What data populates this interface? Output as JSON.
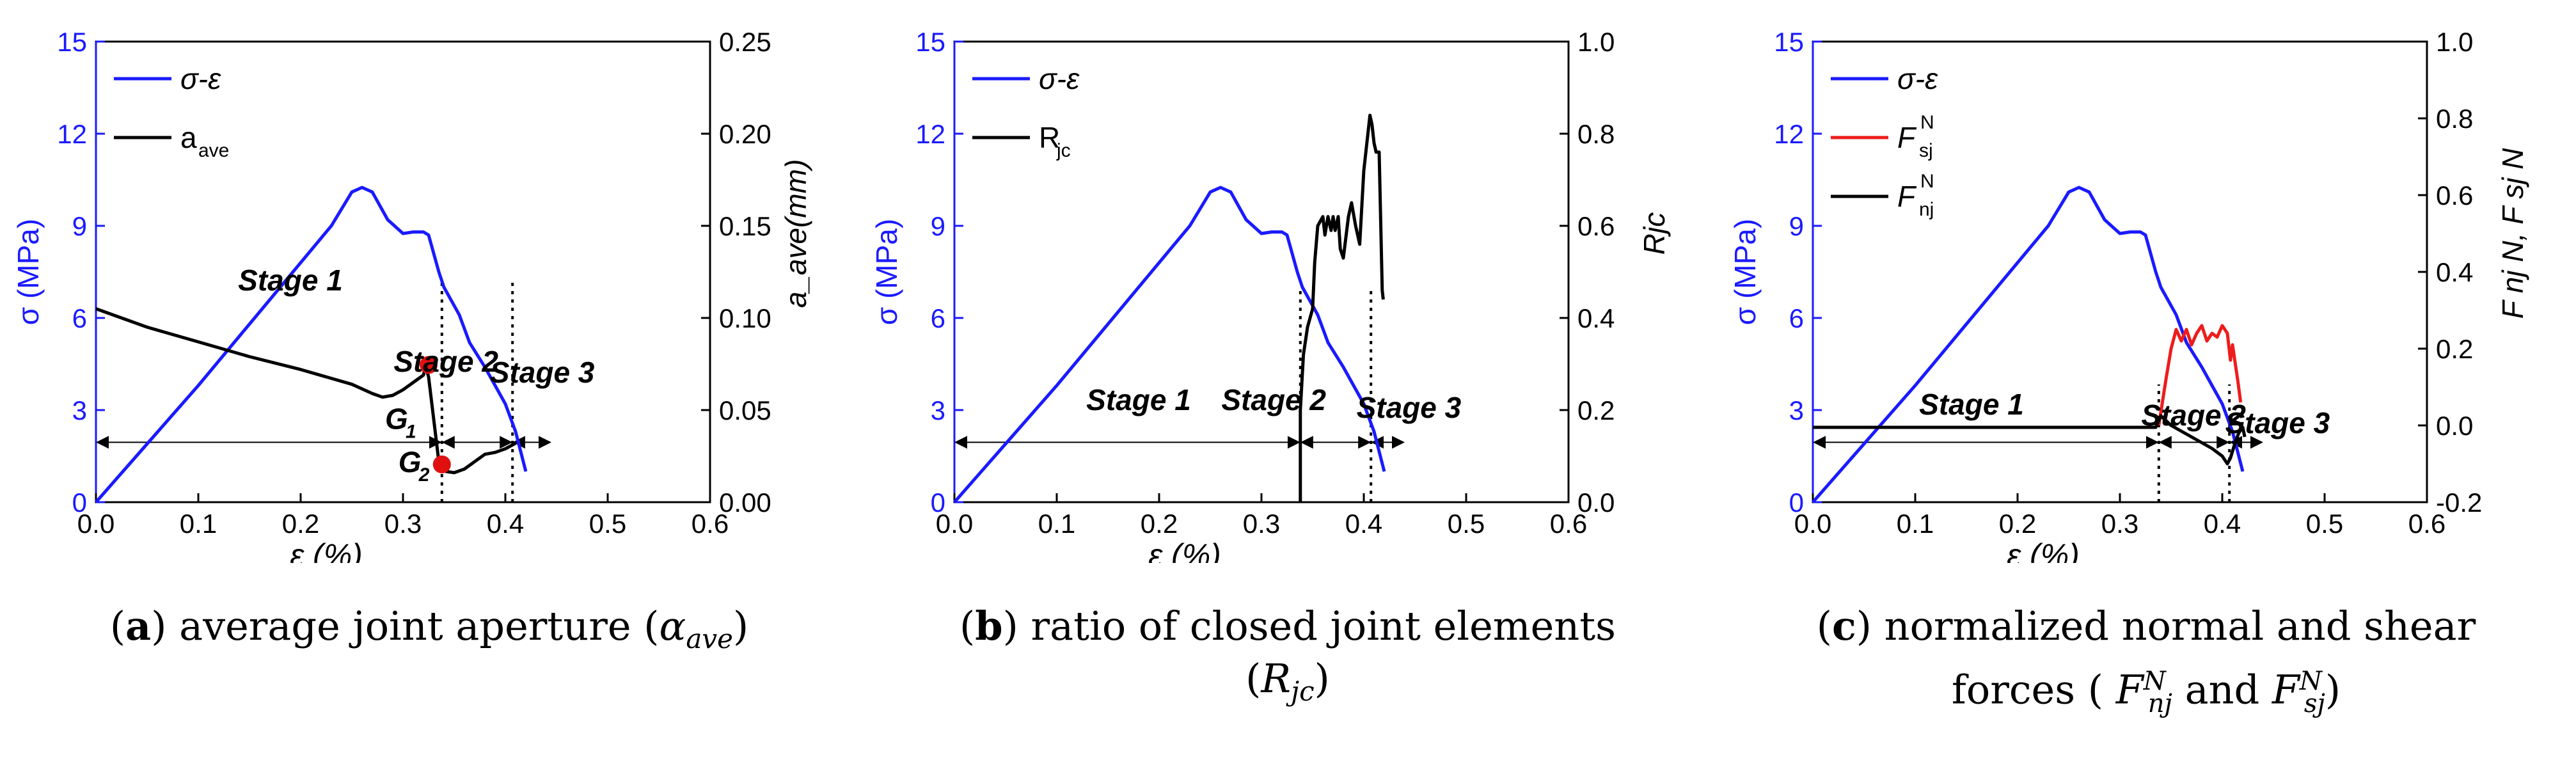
{
  "colors": {
    "stress": "#1a1aff",
    "black": "#000000",
    "red": "#ee1c1c",
    "marker": "#e01010"
  },
  "chart_data": [
    {
      "id": "a",
      "type": "line",
      "xlabel": "ε  (%)",
      "ylabel": "σ (MPa)",
      "y2label": "a_ave(mm)",
      "xlim": [
        0,
        0.6
      ],
      "ylim": [
        0,
        15
      ],
      "y2lim": [
        0,
        0.25
      ],
      "xticks": [
        "0.0",
        "0.1",
        "0.2",
        "0.3",
        "0.4",
        "0.5",
        "0.6"
      ],
      "yticks": [
        "0",
        "3",
        "6",
        "9",
        "12",
        "15"
      ],
      "y2ticks": [
        "0.00",
        "0.05",
        "0.10",
        "0.15",
        "0.20",
        "0.25"
      ],
      "legend": [
        {
          "label": "σ-ε",
          "color": "#1a1aff"
        },
        {
          "label": "a",
          "sub": "ave",
          "color": "#000000"
        }
      ],
      "series": [
        {
          "name": "σ-ε",
          "axis": "y",
          "color": "#1a1aff",
          "points": [
            [
              0,
              0
            ],
            [
              0.05,
              1.9
            ],
            [
              0.1,
              3.8
            ],
            [
              0.15,
              5.8
            ],
            [
              0.2,
              7.8
            ],
            [
              0.23,
              9.0
            ],
            [
              0.25,
              10.1
            ],
            [
              0.26,
              10.25
            ],
            [
              0.27,
              10.1
            ],
            [
              0.285,
              9.2
            ],
            [
              0.3,
              8.75
            ],
            [
              0.31,
              8.8
            ],
            [
              0.32,
              8.8
            ],
            [
              0.325,
              8.7
            ],
            [
              0.335,
              7.5
            ],
            [
              0.34,
              7.0
            ],
            [
              0.355,
              6.1
            ],
            [
              0.365,
              5.2
            ],
            [
              0.38,
              4.4
            ],
            [
              0.39,
              3.8
            ],
            [
              0.4,
              3.2
            ],
            [
              0.41,
              2.3
            ],
            [
              0.42,
              1.0
            ]
          ]
        },
        {
          "name": "a",
          "axis": "y2",
          "color": "#000000",
          "points": [
            [
              0,
              0.105
            ],
            [
              0.05,
              0.095
            ],
            [
              0.1,
              0.087
            ],
            [
              0.15,
              0.079
            ],
            [
              0.2,
              0.072
            ],
            [
              0.25,
              0.064
            ],
            [
              0.27,
              0.059
            ],
            [
              0.28,
              0.057
            ],
            [
              0.29,
              0.058
            ],
            [
              0.3,
              0.061
            ],
            [
              0.31,
              0.065
            ],
            [
              0.32,
              0.069
            ],
            [
              0.322,
              0.074
            ],
            [
              0.325,
              0.068
            ],
            [
              0.33,
              0.045
            ],
            [
              0.335,
              0.022
            ],
            [
              0.338,
              0.017
            ],
            [
              0.35,
              0.016
            ],
            [
              0.36,
              0.018
            ],
            [
              0.37,
              0.022
            ],
            [
              0.38,
              0.026
            ],
            [
              0.39,
              0.027
            ],
            [
              0.4,
              0.029
            ],
            [
              0.41,
              0.032
            ]
          ]
        }
      ],
      "points": [
        {
          "label": "G",
          "sub": "1",
          "x": 0.325,
          "y2": 0.0745
        },
        {
          "label": "G",
          "sub": "2",
          "x": 0.338,
          "y2": 0.0205
        }
      ],
      "vlines": [
        0.338,
        0.407
      ],
      "stages": [
        {
          "label": "Stage 1",
          "x": 0.19,
          "y": 6.9
        },
        {
          "label": "Stage 2",
          "x": 0.342,
          "y": 4.25
        },
        {
          "label": "Stage 3",
          "x": 0.436,
          "y": 3.9
        }
      ],
      "arrows": {
        "y": 1.95,
        "x": [
          0,
          0.338,
          0.407,
          0.445
        ]
      },
      "caption": {
        "letter": "a",
        "text": "average joint aperture (",
        "math": "α",
        "sub": "ave",
        "close": ")"
      }
    },
    {
      "id": "b",
      "type": "line",
      "xlabel": "ε  (%)",
      "ylabel": "σ (MPa)",
      "y2label": "Rjc",
      "xlim": [
        0,
        0.6
      ],
      "ylim": [
        0,
        15
      ],
      "y2lim": [
        0,
        1.0
      ],
      "xticks": [
        "0.0",
        "0.1",
        "0.2",
        "0.3",
        "0.4",
        "0.5",
        "0.6"
      ],
      "yticks": [
        "0",
        "3",
        "6",
        "9",
        "12",
        "15"
      ],
      "y2ticks": [
        "0.0",
        "0.2",
        "0.4",
        "0.6",
        "0.8",
        "1.0"
      ],
      "legend": [
        {
          "label": "σ-ε",
          "color": "#1a1aff"
        },
        {
          "label": "R",
          "sub": "jc",
          "color": "#000000"
        }
      ],
      "series": [
        {
          "name": "σ-ε",
          "axis": "y",
          "color": "#1a1aff",
          "points": [
            [
              0,
              0
            ],
            [
              0.05,
              1.9
            ],
            [
              0.1,
              3.8
            ],
            [
              0.15,
              5.8
            ],
            [
              0.2,
              7.8
            ],
            [
              0.23,
              9.0
            ],
            [
              0.25,
              10.1
            ],
            [
              0.26,
              10.25
            ],
            [
              0.27,
              10.1
            ],
            [
              0.285,
              9.2
            ],
            [
              0.3,
              8.75
            ],
            [
              0.31,
              8.8
            ],
            [
              0.32,
              8.8
            ],
            [
              0.325,
              8.7
            ],
            [
              0.335,
              7.5
            ],
            [
              0.34,
              7.0
            ],
            [
              0.355,
              6.1
            ],
            [
              0.365,
              5.2
            ],
            [
              0.38,
              4.4
            ],
            [
              0.39,
              3.8
            ],
            [
              0.4,
              3.2
            ],
            [
              0.41,
              2.3
            ],
            [
              0.42,
              1.0
            ]
          ]
        },
        {
          "name": "R",
          "axis": "y2",
          "color": "#000000",
          "points": [
            [
              0.338,
              0.0
            ],
            [
              0.338,
              0.2
            ],
            [
              0.341,
              0.32
            ],
            [
              0.345,
              0.38
            ],
            [
              0.35,
              0.42
            ],
            [
              0.352,
              0.52
            ],
            [
              0.355,
              0.6
            ],
            [
              0.36,
              0.62
            ],
            [
              0.362,
              0.58
            ],
            [
              0.365,
              0.62
            ],
            [
              0.368,
              0.59
            ],
            [
              0.37,
              0.62
            ],
            [
              0.372,
              0.59
            ],
            [
              0.375,
              0.62
            ],
            [
              0.377,
              0.55
            ],
            [
              0.38,
              0.53
            ],
            [
              0.385,
              0.62
            ],
            [
              0.388,
              0.65
            ],
            [
              0.392,
              0.6
            ],
            [
              0.396,
              0.56
            ],
            [
              0.4,
              0.72
            ],
            [
              0.404,
              0.8
            ],
            [
              0.406,
              0.84
            ],
            [
              0.408,
              0.82
            ],
            [
              0.41,
              0.78
            ],
            [
              0.412,
              0.76
            ],
            [
              0.415,
              0.76
            ],
            [
              0.418,
              0.46
            ],
            [
              0.419,
              0.44
            ]
          ]
        }
      ],
      "vlines": [
        0.338,
        0.407
      ],
      "stages": [
        {
          "label": "Stage 1",
          "x": 0.18,
          "y": 3.0
        },
        {
          "label": "Stage 2",
          "x": 0.312,
          "y": 3.0
        },
        {
          "label": "Stage 3",
          "x": 0.444,
          "y": 2.75
        }
      ],
      "arrows": {
        "y": 1.95,
        "x": [
          0,
          0.338,
          0.407,
          0.44
        ]
      },
      "caption": {
        "letter": "b",
        "text": "ratio of closed joint elements",
        "math": "R",
        "sub": "jc"
      }
    },
    {
      "id": "c",
      "type": "line",
      "xlabel": "ε  (%)",
      "ylabel": "σ (MPa)",
      "y2label": "F nj N, F sj N",
      "xlim": [
        0,
        0.6
      ],
      "ylim": [
        0,
        15
      ],
      "y2lim": [
        -0.2,
        1.0
      ],
      "xticks": [
        "0.0",
        "0.1",
        "0.2",
        "0.3",
        "0.4",
        "0.5",
        "0.6"
      ],
      "yticks": [
        "0",
        "3",
        "6",
        "9",
        "12",
        "15"
      ],
      "y2ticks": [
        "-0.2",
        "0.0",
        "0.2",
        "0.4",
        "0.6",
        "0.8",
        "1.0"
      ],
      "legend": [
        {
          "label": "σ-ε",
          "color": "#1a1aff"
        },
        {
          "label": "F",
          "sup": "N",
          "sub": "sj",
          "color": "#ee1c1c"
        },
        {
          "label": "F",
          "sup": "N",
          "sub": "nj",
          "color": "#000000"
        }
      ],
      "series": [
        {
          "name": "σ-ε",
          "axis": "y",
          "color": "#1a1aff",
          "points": [
            [
              0,
              0
            ],
            [
              0.05,
              1.9
            ],
            [
              0.1,
              3.8
            ],
            [
              0.15,
              5.8
            ],
            [
              0.2,
              7.8
            ],
            [
              0.23,
              9.0
            ],
            [
              0.25,
              10.1
            ],
            [
              0.26,
              10.25
            ],
            [
              0.27,
              10.1
            ],
            [
              0.285,
              9.2
            ],
            [
              0.3,
              8.75
            ],
            [
              0.31,
              8.8
            ],
            [
              0.32,
              8.8
            ],
            [
              0.325,
              8.7
            ],
            [
              0.335,
              7.5
            ],
            [
              0.34,
              7.0
            ],
            [
              0.355,
              6.1
            ],
            [
              0.365,
              5.2
            ],
            [
              0.38,
              4.4
            ],
            [
              0.39,
              3.8
            ],
            [
              0.4,
              3.2
            ],
            [
              0.41,
              2.3
            ],
            [
              0.42,
              1.0
            ]
          ]
        },
        {
          "name": "F sj",
          "axis": "y2",
          "color": "#ee1c1c",
          "points": [
            [
              0.338,
              0.0
            ],
            [
              0.345,
              0.12
            ],
            [
              0.35,
              0.2
            ],
            [
              0.355,
              0.25
            ],
            [
              0.36,
              0.22
            ],
            [
              0.365,
              0.25
            ],
            [
              0.37,
              0.21
            ],
            [
              0.375,
              0.24
            ],
            [
              0.38,
              0.26
            ],
            [
              0.385,
              0.22
            ],
            [
              0.39,
              0.24
            ],
            [
              0.395,
              0.23
            ],
            [
              0.4,
              0.26
            ],
            [
              0.405,
              0.24
            ],
            [
              0.408,
              0.17
            ],
            [
              0.41,
              0.21
            ],
            [
              0.415,
              0.12
            ],
            [
              0.418,
              0.06
            ]
          ]
        },
        {
          "name": "F nj",
          "axis": "y2",
          "color": "#000000",
          "points": [
            [
              0,
              -0.005
            ],
            [
              0.1,
              -0.005
            ],
            [
              0.2,
              -0.005
            ],
            [
              0.3,
              -0.005
            ],
            [
              0.335,
              -0.005
            ],
            [
              0.34,
              0.025
            ],
            [
              0.35,
              0.0
            ],
            [
              0.36,
              -0.015
            ],
            [
              0.37,
              -0.03
            ],
            [
              0.38,
              -0.045
            ],
            [
              0.39,
              -0.06
            ],
            [
              0.4,
              -0.08
            ],
            [
              0.405,
              -0.1
            ],
            [
              0.408,
              -0.085
            ],
            [
              0.412,
              -0.05
            ],
            [
              0.416,
              -0.02
            ],
            [
              0.42,
              -0.005
            ],
            [
              0.422,
              -0.03
            ]
          ]
        }
      ],
      "vlines": [
        0.338,
        0.407
      ],
      "stages": [
        {
          "label": "Stage 1",
          "x": 0.155,
          "y": 2.85
        },
        {
          "label": "Stage 2",
          "x": 0.372,
          "y": 2.5
        },
        {
          "label": "Stage 3",
          "x": 0.454,
          "y": 2.25
        }
      ],
      "arrows": {
        "y": 1.95,
        "x": [
          0,
          0.338,
          0.407,
          0.44
        ]
      },
      "caption": {
        "letter": "c",
        "text": "normalized normal and shear",
        "text2": "forces (",
        "math1": "F",
        "sup1": "N",
        "sub1": "nj",
        "and": " and ",
        "math2": "F",
        "sup2": "N",
        "sub2": "sj",
        "close": ")"
      }
    }
  ]
}
